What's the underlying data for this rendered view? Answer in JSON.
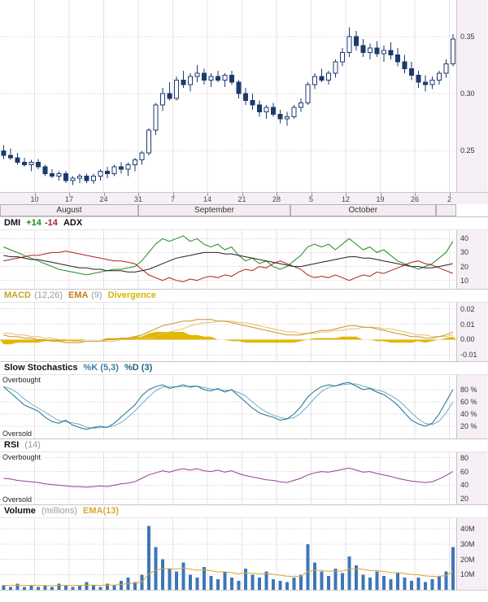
{
  "panels": {
    "dmi": {
      "title": "DMI",
      "plus_label": "+14",
      "minus_label": "-14",
      "adx_label": "ADX"
    },
    "macd": {
      "title": "MACD",
      "params": "(12,26)",
      "ema_label": "EMA",
      "ema_params": "(9)",
      "divergence_label": "Divergence"
    },
    "stoch": {
      "title": "Slow Stochastics",
      "k_label": "%K (5,3)",
      "d_label": "%D (3)",
      "overbought": "Overbought",
      "oversold": "Oversold"
    },
    "rsi": {
      "title": "RSI",
      "params": "(14)",
      "overbought": "Overbought",
      "oversold": "Oversold"
    },
    "volume": {
      "title": "Volume",
      "units": "(millions)",
      "ema_label": "EMA(13)"
    }
  },
  "xaxis": {
    "week_positions": [
      5,
      10,
      15,
      20,
      25,
      30,
      35,
      40,
      45,
      50,
      55,
      60,
      65
    ],
    "week_labels": [
      "10",
      "17",
      "24",
      "31",
      "7",
      "14",
      "21",
      "28",
      "5",
      "12",
      "19",
      "26",
      "2"
    ],
    "months": [
      {
        "label": "August",
        "start": 0,
        "end": 20
      },
      {
        "label": "September",
        "start": 20,
        "end": 42
      },
      {
        "label": "October",
        "start": 42,
        "end": 63
      },
      {
        "label": "",
        "start": 63,
        "end": 66
      }
    ]
  },
  "chart_data": [
    {
      "name": "price",
      "type": "candlestick",
      "ylim": [
        0.214,
        0.382
      ],
      "color": "#1c3a6e",
      "yticks": [
        {
          "v": 0.35,
          "t": "0.35"
        },
        {
          "v": 0.3,
          "t": "0.30"
        },
        {
          "v": 0.25,
          "t": "0.25"
        }
      ],
      "ohlc": [
        [
          0.25,
          0.255,
          0.243,
          0.246
        ],
        [
          0.246,
          0.252,
          0.242,
          0.244
        ],
        [
          0.244,
          0.248,
          0.238,
          0.24
        ],
        [
          0.24,
          0.244,
          0.236,
          0.238
        ],
        [
          0.238,
          0.242,
          0.232,
          0.24
        ],
        [
          0.24,
          0.243,
          0.234,
          0.236
        ],
        [
          0.236,
          0.238,
          0.228,
          0.23
        ],
        [
          0.23,
          0.234,
          0.226,
          0.228
        ],
        [
          0.228,
          0.232,
          0.224,
          0.23
        ],
        [
          0.23,
          0.232,
          0.222,
          0.224
        ],
        [
          0.224,
          0.228,
          0.22,
          0.226
        ],
        [
          0.226,
          0.23,
          0.222,
          0.228
        ],
        [
          0.228,
          0.23,
          0.222,
          0.224
        ],
        [
          0.224,
          0.23,
          0.221,
          0.228
        ],
        [
          0.228,
          0.234,
          0.224,
          0.232
        ],
        [
          0.232,
          0.236,
          0.226,
          0.23
        ],
        [
          0.23,
          0.238,
          0.228,
          0.236
        ],
        [
          0.236,
          0.24,
          0.23,
          0.234
        ],
        [
          0.234,
          0.24,
          0.228,
          0.238
        ],
        [
          0.238,
          0.244,
          0.232,
          0.242
        ],
        [
          0.242,
          0.25,
          0.238,
          0.248
        ],
        [
          0.248,
          0.27,
          0.246,
          0.268
        ],
        [
          0.268,
          0.292,
          0.264,
          0.29
        ],
        [
          0.29,
          0.305,
          0.285,
          0.3
        ],
        [
          0.3,
          0.31,
          0.294,
          0.296
        ],
        [
          0.296,
          0.315,
          0.294,
          0.312
        ],
        [
          0.312,
          0.32,
          0.305,
          0.308
        ],
        [
          0.308,
          0.318,
          0.302,
          0.315
        ],
        [
          0.315,
          0.325,
          0.31,
          0.318
        ],
        [
          0.318,
          0.322,
          0.308,
          0.312
        ],
        [
          0.312,
          0.318,
          0.306,
          0.315
        ],
        [
          0.315,
          0.32,
          0.31,
          0.312
        ],
        [
          0.312,
          0.318,
          0.306,
          0.316
        ],
        [
          0.316,
          0.32,
          0.308,
          0.31
        ],
        [
          0.31,
          0.312,
          0.296,
          0.3
        ],
        [
          0.3,
          0.305,
          0.29,
          0.294
        ],
        [
          0.294,
          0.3,
          0.286,
          0.29
        ],
        [
          0.29,
          0.294,
          0.28,
          0.284
        ],
        [
          0.284,
          0.29,
          0.278,
          0.288
        ],
        [
          0.288,
          0.292,
          0.28,
          0.282
        ],
        [
          0.282,
          0.286,
          0.274,
          0.278
        ],
        [
          0.278,
          0.284,
          0.272,
          0.28
        ],
        [
          0.28,
          0.29,
          0.278,
          0.288
        ],
        [
          0.288,
          0.296,
          0.284,
          0.292
        ],
        [
          0.292,
          0.31,
          0.29,
          0.308
        ],
        [
          0.308,
          0.318,
          0.304,
          0.315
        ],
        [
          0.315,
          0.322,
          0.31,
          0.312
        ],
        [
          0.312,
          0.32,
          0.308,
          0.318
        ],
        [
          0.318,
          0.33,
          0.314,
          0.328
        ],
        [
          0.328,
          0.34,
          0.324,
          0.336
        ],
        [
          0.336,
          0.358,
          0.332,
          0.35
        ],
        [
          0.35,
          0.355,
          0.338,
          0.342
        ],
        [
          0.342,
          0.348,
          0.332,
          0.336
        ],
        [
          0.336,
          0.344,
          0.33,
          0.34
        ],
        [
          0.34,
          0.346,
          0.332,
          0.335
        ],
        [
          0.335,
          0.342,
          0.328,
          0.338
        ],
        [
          0.338,
          0.345,
          0.33,
          0.334
        ],
        [
          0.334,
          0.34,
          0.324,
          0.328
        ],
        [
          0.328,
          0.334,
          0.318,
          0.322
        ],
        [
          0.322,
          0.328,
          0.312,
          0.316
        ],
        [
          0.316,
          0.32,
          0.305,
          0.31
        ],
        [
          0.31,
          0.316,
          0.302,
          0.308
        ],
        [
          0.308,
          0.315,
          0.304,
          0.312
        ],
        [
          0.312,
          0.32,
          0.308,
          0.318
        ],
        [
          0.318,
          0.33,
          0.314,
          0.326
        ],
        [
          0.326,
          0.352,
          0.324,
          0.348
        ]
      ]
    },
    {
      "name": "dmi",
      "type": "line",
      "title": "DMI +14 -14 ADX",
      "ylim": [
        4,
        46
      ],
      "yticks": [
        {
          "v": 40,
          "t": "40"
        },
        {
          "v": 30,
          "t": "30"
        },
        {
          "v": 20,
          "t": "20"
        },
        {
          "v": 10,
          "t": "10"
        }
      ],
      "series": [
        {
          "name": "+DI(14)",
          "color": "#1e8c1e",
          "values": [
            34,
            32,
            30,
            28,
            26,
            24,
            22,
            20,
            18,
            17,
            16,
            15,
            14,
            15,
            16,
            17,
            18,
            18,
            19,
            20,
            24,
            30,
            36,
            40,
            38,
            40,
            42,
            38,
            40,
            36,
            34,
            36,
            32,
            34,
            28,
            24,
            26,
            22,
            24,
            20,
            18,
            20,
            24,
            28,
            34,
            36,
            34,
            36,
            32,
            36,
            40,
            36,
            32,
            34,
            30,
            32,
            28,
            24,
            22,
            20,
            18,
            20,
            22,
            26,
            30,
            38
          ]
        },
        {
          "name": "-DI(14)",
          "color": "#aa2222",
          "values": [
            24,
            25,
            26,
            27,
            28,
            28,
            29,
            30,
            30,
            31,
            30,
            29,
            28,
            27,
            26,
            25,
            24,
            24,
            23,
            22,
            18,
            14,
            12,
            10,
            12,
            10,
            9,
            11,
            10,
            12,
            13,
            12,
            14,
            13,
            16,
            18,
            17,
            20,
            19,
            22,
            24,
            22,
            20,
            18,
            14,
            12,
            13,
            12,
            14,
            12,
            10,
            12,
            14,
            13,
            16,
            15,
            17,
            19,
            21,
            23,
            24,
            22,
            21,
            19,
            17,
            15
          ]
        },
        {
          "name": "ADX",
          "color": "#222222",
          "values": [
            28,
            27,
            27,
            26,
            25,
            25,
            24,
            23,
            22,
            21,
            20,
            19,
            19,
            18,
            18,
            17,
            17,
            17,
            16,
            16,
            17,
            18,
            20,
            22,
            24,
            26,
            27,
            28,
            29,
            30,
            30,
            30,
            29,
            29,
            28,
            27,
            26,
            25,
            24,
            23,
            22,
            21,
            20,
            20,
            21,
            22,
            23,
            24,
            25,
            26,
            27,
            27,
            26,
            26,
            25,
            24,
            23,
            22,
            21,
            20,
            20,
            19,
            19,
            20,
            21,
            22
          ]
        }
      ]
    },
    {
      "name": "macd",
      "type": "line+area",
      "title": "MACD (12,26) EMA (9) Divergence",
      "ylim": [
        -0.014,
        0.024
      ],
      "yticks": [
        {
          "v": 0.02,
          "t": "0.02"
        },
        {
          "v": 0.01,
          "t": "0.01"
        },
        {
          "v": 0,
          "t": "0.00"
        },
        {
          "v": -0.01,
          "t": "-0.01"
        }
      ],
      "macd_color": "#c9932a",
      "signal_color": "#e6bf63",
      "div_color": "#e2b700",
      "macd": [
        0.003,
        0.002,
        0.002,
        0.001,
        0.001,
        0.0,
        0.0,
        -0.001,
        -0.001,
        -0.002,
        -0.002,
        -0.002,
        -0.001,
        -0.001,
        -0.001,
        0.0,
        0.0,
        0.001,
        0.001,
        0.002,
        0.003,
        0.005,
        0.007,
        0.009,
        0.01,
        0.011,
        0.012,
        0.012,
        0.013,
        0.013,
        0.013,
        0.012,
        0.012,
        0.011,
        0.01,
        0.009,
        0.008,
        0.007,
        0.006,
        0.005,
        0.004,
        0.003,
        0.003,
        0.003,
        0.004,
        0.005,
        0.006,
        0.006,
        0.007,
        0.008,
        0.009,
        0.009,
        0.008,
        0.008,
        0.007,
        0.006,
        0.005,
        0.004,
        0.003,
        0.002,
        0.002,
        0.001,
        0.001,
        0.002,
        0.003,
        0.005
      ],
      "signal": [
        0.004,
        0.004,
        0.003,
        0.003,
        0.002,
        0.002,
        0.001,
        0.001,
        0.0,
        0.0,
        -0.001,
        -0.001,
        -0.001,
        -0.001,
        -0.001,
        -0.001,
        -0.001,
        0.0,
        0.0,
        0.0,
        0.001,
        0.001,
        0.002,
        0.004,
        0.005,
        0.006,
        0.007,
        0.009,
        0.01,
        0.011,
        0.011,
        0.012,
        0.012,
        0.012,
        0.011,
        0.011,
        0.01,
        0.009,
        0.008,
        0.007,
        0.006,
        0.005,
        0.005,
        0.004,
        0.004,
        0.004,
        0.005,
        0.005,
        0.006,
        0.006,
        0.007,
        0.007,
        0.008,
        0.008,
        0.008,
        0.007,
        0.007,
        0.006,
        0.005,
        0.004,
        0.003,
        0.003,
        0.002,
        0.002,
        0.002,
        0.003
      ],
      "divergence": [
        -0.003,
        -0.003,
        -0.002,
        -0.002,
        -0.002,
        -0.002,
        -0.001,
        -0.001,
        -0.001,
        -0.001,
        -0.001,
        -0.001,
        0.0,
        0.0,
        0.0,
        0.001,
        0.001,
        0.001,
        0.001,
        0.002,
        0.002,
        0.004,
        0.005,
        0.005,
        0.005,
        0.005,
        0.005,
        0.003,
        0.003,
        0.002,
        0.002,
        0.0,
        0.0,
        -0.001,
        -0.001,
        -0.002,
        -0.002,
        -0.002,
        -0.002,
        -0.002,
        -0.002,
        -0.002,
        -0.002,
        -0.001,
        0.0,
        0.001,
        0.001,
        0.001,
        0.001,
        0.002,
        0.002,
        0.002,
        0.0,
        0.0,
        -0.001,
        -0.001,
        -0.002,
        -0.002,
        -0.002,
        -0.002,
        -0.001,
        -0.002,
        -0.001,
        0.0,
        0.001,
        0.002
      ]
    },
    {
      "name": "stoch",
      "type": "line",
      "title": "Slow Stochastics %K (5,3) %D (3)",
      "ylim": [
        0,
        104
      ],
      "yticks": [
        {
          "v": 80,
          "t": "80 %"
        },
        {
          "v": 60,
          "t": "60 %"
        },
        {
          "v": 40,
          "t": "40 %"
        },
        {
          "v": 20,
          "t": "20 %"
        }
      ],
      "k_color": "#1f6f93",
      "d_color": "#74aac4",
      "k_values": [
        85,
        75,
        65,
        55,
        50,
        45,
        35,
        28,
        25,
        30,
        22,
        18,
        15,
        18,
        20,
        18,
        25,
        35,
        45,
        55,
        70,
        80,
        85,
        88,
        82,
        85,
        88,
        84,
        86,
        80,
        78,
        82,
        76,
        80,
        70,
        60,
        50,
        42,
        38,
        35,
        30,
        32,
        40,
        52,
        68,
        78,
        85,
        88,
        86,
        90,
        92,
        86,
        80,
        82,
        76,
        72,
        64,
        55,
        42,
        30,
        24,
        20,
        25,
        40,
        60,
        80
      ]
    },
    {
      "name": "rsi",
      "type": "line",
      "title": "RSI (14)",
      "ylim": [
        12,
        88
      ],
      "yticks": [
        {
          "v": 80,
          "t": "80"
        },
        {
          "v": 60,
          "t": "60"
        },
        {
          "v": 40,
          "t": "40"
        },
        {
          "v": 20,
          "t": "20"
        }
      ],
      "color": "#993d93",
      "values": [
        50,
        49,
        47,
        46,
        45,
        44,
        42,
        41,
        40,
        39,
        38,
        38,
        37,
        38,
        39,
        38,
        40,
        42,
        43,
        45,
        50,
        55,
        58,
        61,
        59,
        62,
        64,
        62,
        64,
        61,
        60,
        62,
        59,
        61,
        57,
        54,
        52,
        50,
        48,
        47,
        45,
        44,
        47,
        50,
        55,
        58,
        60,
        59,
        61,
        63,
        65,
        62,
        59,
        60,
        57,
        55,
        53,
        50,
        48,
        46,
        45,
        44,
        45,
        49,
        54,
        60
      ]
    },
    {
      "name": "volume",
      "type": "bar+line",
      "title": "Volume (millions) EMA(13)",
      "ylim": [
        0,
        47
      ],
      "yticks": [
        {
          "v": 40,
          "t": "40M"
        },
        {
          "v": 30,
          "t": "30M"
        },
        {
          "v": 20,
          "t": "20M"
        },
        {
          "v": 10,
          "t": "10M"
        }
      ],
      "bar_color": "#3d76b8",
      "ema_color": "#d8a830",
      "values": [
        3,
        2,
        4,
        2,
        3,
        2,
        3,
        2,
        4,
        3,
        2,
        3,
        5,
        3,
        2,
        4,
        3,
        6,
        8,
        5,
        10,
        42,
        28,
        20,
        14,
        12,
        18,
        10,
        8,
        15,
        9,
        7,
        12,
        8,
        6,
        14,
        10,
        8,
        12,
        7,
        6,
        5,
        8,
        10,
        30,
        18,
        12,
        9,
        14,
        11,
        22,
        16,
        10,
        8,
        12,
        9,
        7,
        11,
        8,
        6,
        8,
        5,
        7,
        9,
        12,
        28
      ]
    }
  ]
}
